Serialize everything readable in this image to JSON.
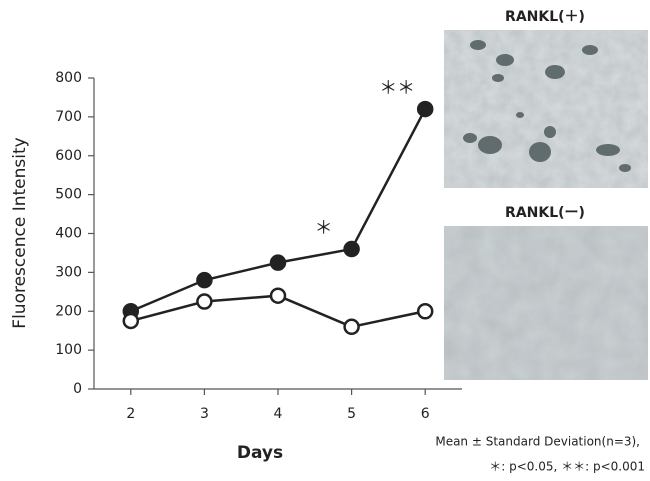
{
  "chart_data": {
    "type": "line",
    "x": [
      2,
      3,
      4,
      5,
      6
    ],
    "xlim": [
      1.5,
      6.5
    ],
    "xticks": [
      2,
      3,
      4,
      5,
      6
    ],
    "ylim": [
      0,
      800
    ],
    "yticks": [
      0,
      100,
      200,
      300,
      400,
      500,
      600,
      700,
      800
    ],
    "xlabel": "Days",
    "ylabel": "Fluorescence Intensity",
    "series": [
      {
        "color": "#222222",
        "marker": "filled",
        "values": [
          200,
          280,
          325,
          360,
          720
        ]
      },
      {
        "color": "#222222",
        "marker": "open",
        "values": [
          175,
          225,
          240,
          160,
          200
        ]
      }
    ],
    "annotations": [
      "＊",
      "＊＊"
    ],
    "image_labels": [
      "RANKL(＋)",
      "RANKL(ー)"
    ],
    "footnote": [
      "Mean ± Standard Deviation(n=3),",
      "＊: p<0.05, ＊＊: p<0.001"
    ]
  }
}
